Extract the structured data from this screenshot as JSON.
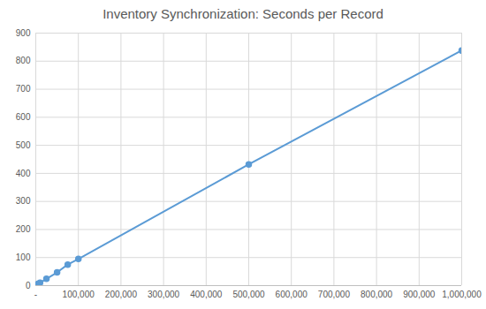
{
  "chart_data": {
    "type": "line",
    "title": "Inventory Synchronization: Seconds per Record",
    "x": [
      1000,
      5000,
      10000,
      25000,
      50000,
      75000,
      100000,
      500000,
      1000000
    ],
    "series": [
      {
        "name": "Seconds per Record",
        "color": "#5b9bd5",
        "marker": "circle",
        "line_style": "solid",
        "values": [
          2,
          6,
          10,
          24,
          47,
          75,
          95,
          432,
          838
        ]
      }
    ],
    "xlim": [
      0,
      1000000
    ],
    "xticks": [
      {
        "value": 0,
        "label": "-"
      },
      {
        "value": 100000,
        "label": "100,000"
      },
      {
        "value": 200000,
        "label": "200,000"
      },
      {
        "value": 300000,
        "label": "300,000"
      },
      {
        "value": 400000,
        "label": "400,000"
      },
      {
        "value": 500000,
        "label": "500,000"
      },
      {
        "value": 600000,
        "label": "600,000"
      },
      {
        "value": 700000,
        "label": "700,000"
      },
      {
        "value": 800000,
        "label": "800,000"
      },
      {
        "value": 900000,
        "label": "900,000"
      },
      {
        "value": 1000000,
        "label": "1,000,000"
      }
    ],
    "ylim": [
      0,
      900
    ],
    "yticks": [
      0,
      100,
      200,
      300,
      400,
      500,
      600,
      700,
      800,
      900
    ],
    "grid": true
  }
}
